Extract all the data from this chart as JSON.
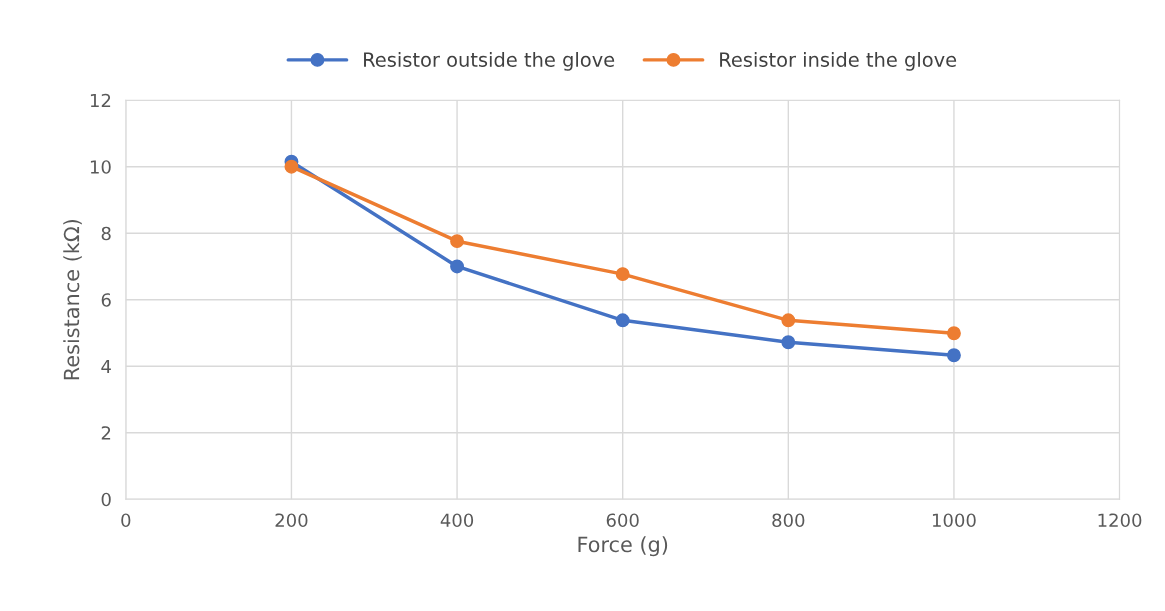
{
  "chart_data": {
    "type": "line",
    "xlabel": "Force (g)",
    "ylabel": "Resistance (kΩ)",
    "x": [
      200,
      400,
      600,
      800,
      1000
    ],
    "series": [
      {
        "name": "Resistor outside the glove",
        "color": "#4472c4",
        "values": [
          10.15,
          7.0,
          5.38,
          4.72,
          4.33
        ]
      },
      {
        "name": "Resistor inside the glove",
        "color": "#ed7d31",
        "values": [
          10.0,
          7.76,
          6.77,
          5.38,
          4.99
        ]
      }
    ],
    "xlim": [
      0,
      1200
    ],
    "xticks": [
      0,
      200,
      400,
      600,
      800,
      1000,
      1200
    ],
    "ylim": [
      0,
      12
    ],
    "yticks": [
      0,
      2,
      4,
      6,
      8,
      10,
      12
    ],
    "grid": true,
    "legend": "top",
    "marker": "circle",
    "line_style": "solid"
  }
}
